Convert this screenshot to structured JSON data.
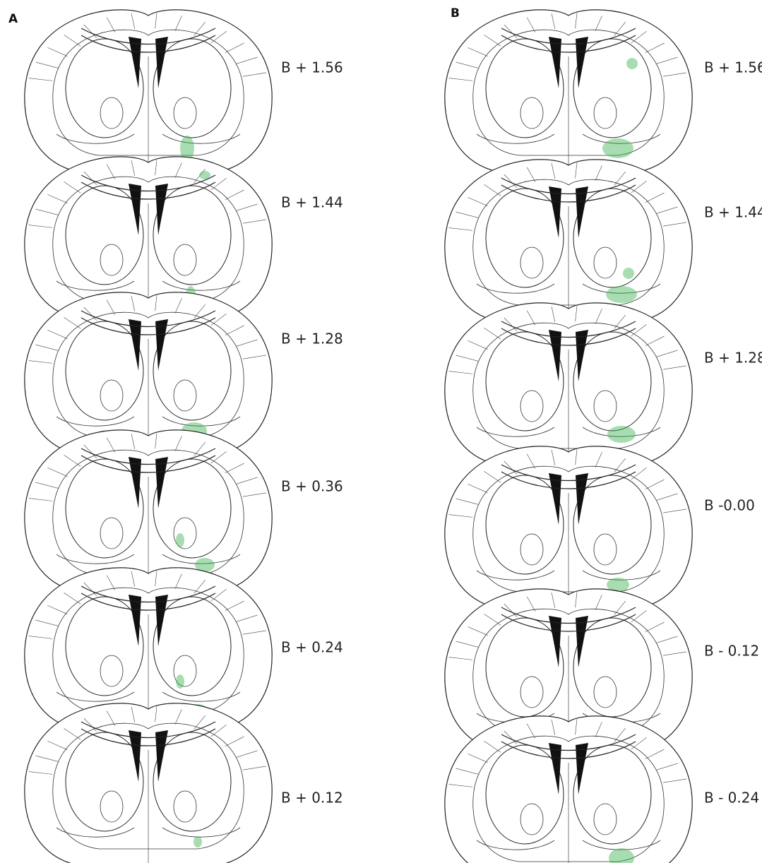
{
  "panels": [
    {
      "label": "A",
      "sections": [
        "B + 1.56",
        "B + 1.44",
        "B + 1.28",
        "B + 0.36",
        "B + 0.24",
        "B + 0.12"
      ]
    },
    {
      "label": "B",
      "sections": [
        "B + 1.56",
        "B + 1.44",
        "B + 1.28",
        "B -0.00",
        "B - 0.12",
        "B - 0.24"
      ]
    }
  ]
}
